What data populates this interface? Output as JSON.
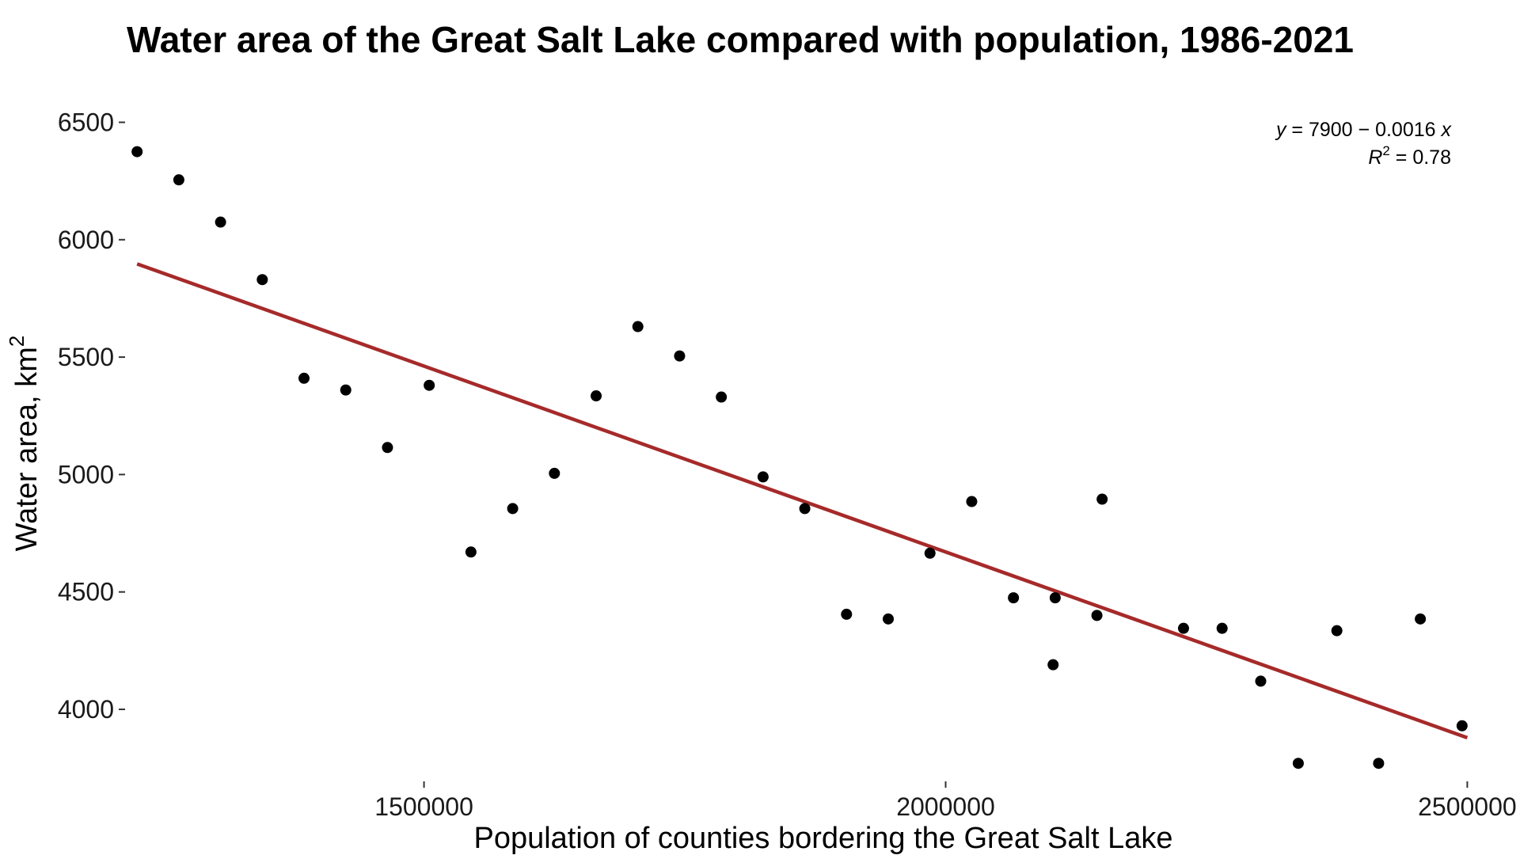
{
  "chart_data": {
    "type": "scatter",
    "title": "Water area of the Great Salt Lake compared with population, 1986-2021",
    "xlabel": "Population of counties bordering the Great Salt Lake",
    "ylabel_text": "Water area, km",
    "ylabel_superscript": "2",
    "xlim": [
      1215000,
      2505000
    ],
    "ylim": [
      3700,
      6650
    ],
    "x_ticks": [
      1500000,
      2000000,
      2500000
    ],
    "x_tick_labels": [
      "1500000",
      "2000000",
      "2500000"
    ],
    "y_ticks": [
      4000,
      4500,
      5000,
      5500,
      6000,
      6500
    ],
    "y_tick_labels": [
      "4000",
      "4500",
      "5000",
      "5500",
      "6000",
      "6500"
    ],
    "grid": false,
    "point_color": "#000000",
    "line_color": "#a62a2a",
    "regression": {
      "intercept": 7900,
      "slope": -0.0016,
      "equation_prefix": "y",
      "equation_body": " = 7900 − 0.0016 ",
      "equation_var": "x",
      "r2_prefix": "R",
      "r2_superscript": "2",
      "r2_body": " = 0.78",
      "line_x_range": [
        1225000,
        2500000
      ],
      "line_y_range": [
        5897,
        3879
      ]
    },
    "points": [
      {
        "x": 1225000,
        "y": 6375
      },
      {
        "x": 1265000,
        "y": 6255
      },
      {
        "x": 1305000,
        "y": 6075
      },
      {
        "x": 1345000,
        "y": 5830
      },
      {
        "x": 1385000,
        "y": 5410
      },
      {
        "x": 1425000,
        "y": 5360
      },
      {
        "x": 1465000,
        "y": 5115
      },
      {
        "x": 1505000,
        "y": 5380
      },
      {
        "x": 1545000,
        "y": 4670
      },
      {
        "x": 1585000,
        "y": 4855
      },
      {
        "x": 1625000,
        "y": 5005
      },
      {
        "x": 1665000,
        "y": 5335
      },
      {
        "x": 1705000,
        "y": 5630
      },
      {
        "x": 1745000,
        "y": 5505
      },
      {
        "x": 1785000,
        "y": 5330
      },
      {
        "x": 1825000,
        "y": 4990
      },
      {
        "x": 1865000,
        "y": 4855
      },
      {
        "x": 1905000,
        "y": 4405
      },
      {
        "x": 1945000,
        "y": 4385
      },
      {
        "x": 1985000,
        "y": 4665
      },
      {
        "x": 2025000,
        "y": 4885
      },
      {
        "x": 2065000,
        "y": 4475
      },
      {
        "x": 2103000,
        "y": 4190
      },
      {
        "x": 2105000,
        "y": 4475
      },
      {
        "x": 2145000,
        "y": 4400
      },
      {
        "x": 2150000,
        "y": 4895
      },
      {
        "x": 2228000,
        "y": 4345
      },
      {
        "x": 2265000,
        "y": 4345
      },
      {
        "x": 2302000,
        "y": 4120
      },
      {
        "x": 2338000,
        "y": 3770
      },
      {
        "x": 2375000,
        "y": 4335
      },
      {
        "x": 2415000,
        "y": 3770
      },
      {
        "x": 2455000,
        "y": 4385
      },
      {
        "x": 2495000,
        "y": 3930
      }
    ]
  }
}
